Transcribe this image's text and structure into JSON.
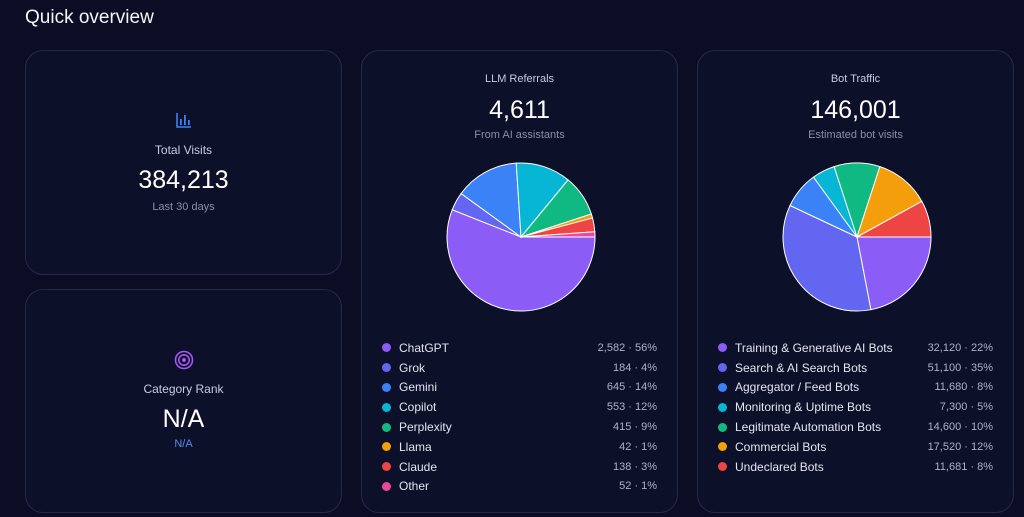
{
  "page": {
    "title": "Quick overview"
  },
  "visits": {
    "label": "Total Visits",
    "value": "384,213",
    "sub": "Last 30 days",
    "icon": "bar-chart-icon"
  },
  "rank": {
    "label": "Category Rank",
    "value": "N/A",
    "sub": "N/A",
    "icon": "target-icon"
  },
  "llm": {
    "title": "LLM Referrals",
    "value": "4,611",
    "sub": "From AI assistants",
    "legend": [
      {
        "name": "ChatGPT",
        "value": "2,582 · 56%",
        "color": "#8b5cf6"
      },
      {
        "name": "Grok",
        "value": "184 · 4%",
        "color": "#6366f1"
      },
      {
        "name": "Gemini",
        "value": "645 · 14%",
        "color": "#3b82f6"
      },
      {
        "name": "Copilot",
        "value": "553 · 12%",
        "color": "#06b6d4"
      },
      {
        "name": "Perplexity",
        "value": "415 · 9%",
        "color": "#10b981"
      },
      {
        "name": "Llama",
        "value": "42 · 1%",
        "color": "#f59e0b"
      },
      {
        "name": "Claude",
        "value": "138 · 3%",
        "color": "#ef4444"
      },
      {
        "name": "Other",
        "value": "52 · 1%",
        "color": "#ec4899"
      }
    ]
  },
  "bot": {
    "title": "Bot Traffic",
    "value": "146,001",
    "sub": "Estimated bot visits",
    "legend": [
      {
        "name": "Training & Generative AI Bots",
        "value": "32,120 · 22%",
        "color": "#8b5cf6"
      },
      {
        "name": "Search & AI Search Bots",
        "value": "51,100 · 35%",
        "color": "#6366f1"
      },
      {
        "name": "Aggregator / Feed Bots",
        "value": "11,680 · 8%",
        "color": "#3b82f6"
      },
      {
        "name": "Monitoring & Uptime Bots",
        "value": "7,300 · 5%",
        "color": "#06b6d4"
      },
      {
        "name": "Legitimate Automation Bots",
        "value": "14,600 · 10%",
        "color": "#10b981"
      },
      {
        "name": "Commercial Bots",
        "value": "17,520 · 12%",
        "color": "#f59e0b"
      },
      {
        "name": "Undeclared Bots",
        "value": "11,681 · 8%",
        "color": "#ef4444"
      }
    ]
  },
  "chart_data": [
    {
      "type": "pie",
      "categories": [
        "ChatGPT",
        "Grok",
        "Gemini",
        "Copilot",
        "Perplexity",
        "Llama",
        "Claude",
        "Other"
      ],
      "values": [
        2582,
        184,
        645,
        553,
        415,
        42,
        138,
        52
      ],
      "title": "LLM Referrals"
    },
    {
      "type": "pie",
      "categories": [
        "Training & Generative AI Bots",
        "Search & AI Search Bots",
        "Aggregator / Feed Bots",
        "Monitoring & Uptime Bots",
        "Legitimate Automation Bots",
        "Commercial Bots",
        "Undeclared Bots"
      ],
      "values": [
        32120,
        51100,
        11680,
        7300,
        14600,
        17520,
        11681
      ],
      "title": "Bot Traffic"
    }
  ]
}
